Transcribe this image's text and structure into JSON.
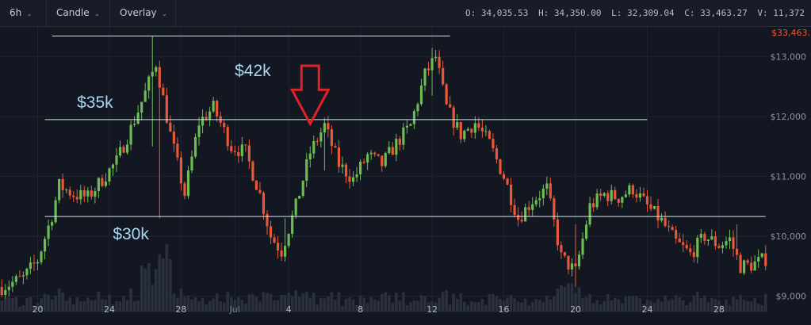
{
  "toolbar": {
    "interval": "6h",
    "chart_type": "Candle",
    "overlay": "Overlay"
  },
  "ohlc": {
    "open": "O: 34,035.53",
    "high": "H: 34,350.00",
    "low": "L: 32,309.04",
    "close": "C: 33,463.27",
    "volume": "V: 11,372"
  },
  "colors": {
    "up": "#6dbd54",
    "down": "#e8593a",
    "level_line": "#cfe9e6",
    "annotation_text": "#a8d8f0",
    "arrow": "#e22027",
    "price_tag": "#e8593a",
    "volume": "#2a313d"
  },
  "chart_data": {
    "type": "candlestick",
    "title": "",
    "xlabel": "",
    "ylabel": "",
    "x_ticks": [
      "20",
      "24",
      "28",
      "Jul",
      "4",
      "8",
      "12",
      "16",
      "20",
      "24",
      "28"
    ],
    "y_ticks": [
      "$13,000",
      "$12,000",
      "$11,000",
      "$10,000",
      "$9,000"
    ],
    "last_price_label": "$33,463...",
    "ylim": [
      8900,
      13500
    ],
    "grid": true,
    "control_points": [
      [
        0,
        9150
      ],
      [
        6,
        9300
      ],
      [
        10,
        9600
      ],
      [
        14,
        10350
      ],
      [
        16,
        10850
      ],
      [
        20,
        10700
      ],
      [
        24,
        10650
      ],
      [
        28,
        10950
      ],
      [
        32,
        11250
      ],
      [
        36,
        11800
      ],
      [
        40,
        12400
      ],
      [
        43,
        12900
      ],
      [
        47,
        11700
      ],
      [
        51,
        10700
      ],
      [
        55,
        11900
      ],
      [
        59,
        12150
      ],
      [
        64,
        11500
      ],
      [
        68,
        11400
      ],
      [
        72,
        10700
      ],
      [
        75,
        10000
      ],
      [
        78,
        9750
      ],
      [
        82,
        10500
      ],
      [
        86,
        11400
      ],
      [
        90,
        11850
      ],
      [
        94,
        11200
      ],
      [
        98,
        10950
      ],
      [
        102,
        11350
      ],
      [
        106,
        11200
      ],
      [
        110,
        11550
      ],
      [
        114,
        11850
      ],
      [
        118,
        12700
      ],
      [
        121,
        13000
      ],
      [
        124,
        12150
      ],
      [
        128,
        11700
      ],
      [
        132,
        11900
      ],
      [
        136,
        11550
      ],
      [
        140,
        11000
      ],
      [
        144,
        10300
      ],
      [
        148,
        10600
      ],
      [
        152,
        10800
      ],
      [
        156,
        9650
      ],
      [
        160,
        9400
      ],
      [
        164,
        10500
      ],
      [
        168,
        10700
      ],
      [
        172,
        10650
      ],
      [
        176,
        10800
      ],
      [
        180,
        10500
      ],
      [
        184,
        10250
      ],
      [
        188,
        9900
      ],
      [
        192,
        9700
      ],
      [
        196,
        10000
      ],
      [
        200,
        9850
      ],
      [
        203,
        9950
      ],
      [
        206,
        9500
      ],
      [
        209,
        9520
      ],
      [
        213,
        9620
      ]
    ],
    "spikes": [
      {
        "i": 42,
        "high": 13350,
        "low": 11500
      },
      {
        "i": 44,
        "high": 12800,
        "low": 10300
      },
      {
        "i": 79,
        "high": 10300,
        "low": 9650
      },
      {
        "i": 90,
        "high": 11950,
        "low": 11100
      },
      {
        "i": 120,
        "high": 13150,
        "low": 12350
      },
      {
        "i": 160,
        "high": 10200,
        "low": 9150
      },
      {
        "i": 205,
        "high": 10200,
        "low": 9600
      }
    ],
    "levels": [
      {
        "price": 13350,
        "from": 14,
        "to": 125
      },
      {
        "price": 11950,
        "from": 12,
        "to": 180
      },
      {
        "price": 10330,
        "from": 12,
        "to": 213
      }
    ],
    "annotations": [
      {
        "text": "$42k",
        "i": 70,
        "price": 12680
      },
      {
        "text": "$35k",
        "i": 26,
        "price": 12150
      },
      {
        "text": "$30k",
        "i": 36,
        "price": 9950
      }
    ],
    "arrow": {
      "i": 86,
      "top": 12850,
      "tip": 11880
    },
    "tick_candle_index": [
      10,
      30,
      50,
      65,
      80,
      100,
      120,
      140,
      160,
      180,
      200
    ]
  }
}
